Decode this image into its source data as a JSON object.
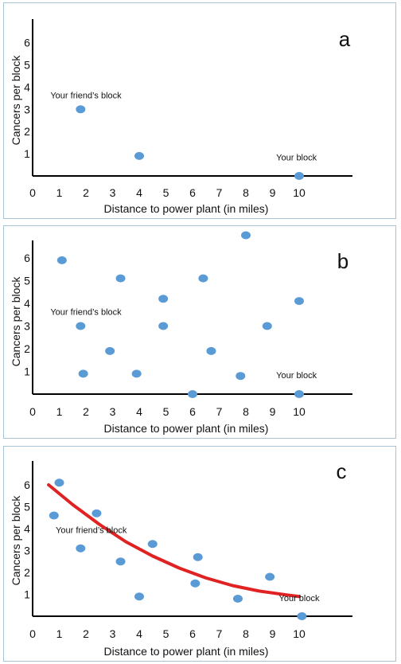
{
  "chart_data": [
    {
      "type": "scatter",
      "panel_label": "a",
      "xlabel": "Distance to power plant (in miles)",
      "ylabel": "Cancers per block",
      "xlim": [
        0,
        11
      ],
      "ylim": [
        0,
        7
      ],
      "xticks": [
        "0",
        "1",
        "2",
        "3",
        "4",
        "5",
        "6",
        "7",
        "8",
        "9",
        "10"
      ],
      "yticks": [
        "1",
        "2",
        "3",
        "4",
        "5",
        "6"
      ],
      "grid": false,
      "point_color": "#5b9bd5",
      "points": [
        {
          "x": 1.8,
          "y": 3.0
        },
        {
          "x": 4.0,
          "y": 0.9
        },
        {
          "x": 10.0,
          "y": 0.0
        }
      ],
      "annotations": [
        {
          "text": "Your friend’s block",
          "x": 2.0,
          "y": 3.5
        },
        {
          "text": "Your block",
          "x": 9.9,
          "y": 0.7
        }
      ]
    },
    {
      "type": "scatter",
      "panel_label": "b",
      "xlabel": "Distance to power plant (in miles)",
      "ylabel": "Cancers per block",
      "xlim": [
        0,
        11
      ],
      "ylim": [
        0,
        7
      ],
      "xticks": [
        "0",
        "1",
        "2",
        "3",
        "4",
        "5",
        "6",
        "7",
        "8",
        "9",
        "10"
      ],
      "yticks": [
        "1",
        "2",
        "3",
        "4",
        "5",
        "6"
      ],
      "grid": false,
      "point_color": "#5b9bd5",
      "points": [
        {
          "x": 1.1,
          "y": 5.9
        },
        {
          "x": 1.8,
          "y": 3.0
        },
        {
          "x": 1.9,
          "y": 0.9
        },
        {
          "x": 2.9,
          "y": 1.9
        },
        {
          "x": 3.3,
          "y": 5.1
        },
        {
          "x": 3.9,
          "y": 0.9
        },
        {
          "x": 4.9,
          "y": 4.2
        },
        {
          "x": 4.9,
          "y": 3.0
        },
        {
          "x": 6.0,
          "y": 0.0
        },
        {
          "x": 6.4,
          "y": 5.1
        },
        {
          "x": 6.7,
          "y": 1.9
        },
        {
          "x": 7.8,
          "y": 0.8
        },
        {
          "x": 8.0,
          "y": 7.0
        },
        {
          "x": 8.8,
          "y": 3.0
        },
        {
          "x": 10.0,
          "y": 4.1
        },
        {
          "x": 10.0,
          "y": 0.0
        }
      ],
      "annotations": [
        {
          "text": "Your friend’s block",
          "x": 2.0,
          "y": 3.5
        },
        {
          "text": "Your block",
          "x": 9.9,
          "y": 0.7
        }
      ]
    },
    {
      "type": "scatter",
      "panel_label": "c",
      "xlabel": "Distance to power plant (in miles)",
      "ylabel": "Cancers per block",
      "xlim": [
        0,
        11
      ],
      "ylim": [
        0,
        7
      ],
      "xticks": [
        "0",
        "1",
        "2",
        "3",
        "4",
        "5",
        "6",
        "7",
        "8",
        "9",
        "10"
      ],
      "yticks": [
        "1",
        "2",
        "3",
        "4",
        "5",
        "6"
      ],
      "grid": false,
      "point_color": "#5b9bd5",
      "trend_color": "#e02222",
      "points": [
        {
          "x": 0.8,
          "y": 4.6
        },
        {
          "x": 1.0,
          "y": 6.1
        },
        {
          "x": 1.8,
          "y": 3.1
        },
        {
          "x": 2.4,
          "y": 4.7
        },
        {
          "x": 3.3,
          "y": 2.5
        },
        {
          "x": 4.0,
          "y": 0.9
        },
        {
          "x": 4.5,
          "y": 3.3
        },
        {
          "x": 6.1,
          "y": 1.5
        },
        {
          "x": 6.2,
          "y": 2.7
        },
        {
          "x": 7.7,
          "y": 0.8
        },
        {
          "x": 8.9,
          "y": 1.8
        },
        {
          "x": 10.1,
          "y": 0.0
        }
      ],
      "trend_line": [
        {
          "x": 0.6,
          "y": 6.0
        },
        {
          "x": 1.5,
          "y": 5.1
        },
        {
          "x": 2.5,
          "y": 4.2
        },
        {
          "x": 3.5,
          "y": 3.4
        },
        {
          "x": 4.5,
          "y": 2.75
        },
        {
          "x": 5.5,
          "y": 2.2
        },
        {
          "x": 6.5,
          "y": 1.75
        },
        {
          "x": 7.5,
          "y": 1.4
        },
        {
          "x": 8.5,
          "y": 1.15
        },
        {
          "x": 9.5,
          "y": 0.98
        },
        {
          "x": 10.0,
          "y": 0.9
        }
      ],
      "annotations": [
        {
          "text": "Your friend’s block",
          "x": 2.2,
          "y": 3.8
        },
        {
          "text": "Your block",
          "x": 10.0,
          "y": 0.7
        }
      ]
    }
  ]
}
